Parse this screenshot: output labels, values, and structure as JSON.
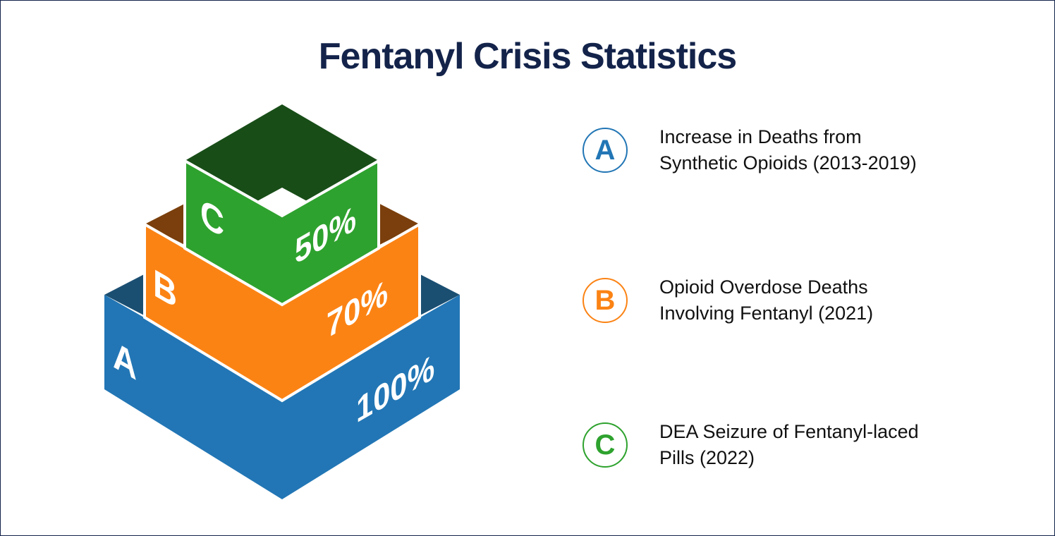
{
  "title": "Fentanyl Crisis Statistics",
  "colors": {
    "title": "#13234a",
    "A": "#2276b5",
    "B": "#fb8314",
    "C": "#2ea22e",
    "A_dark": "#1b4f72",
    "B_dark": "#7a3f0c",
    "C_dark": "#184d17"
  },
  "levels": [
    {
      "letter": "A",
      "value": "100%",
      "line1": "Increase in Deaths from",
      "line2": "Synthetic Opioids (2013-2019)"
    },
    {
      "letter": "B",
      "value": "70%",
      "line1": "Opioid Overdose Deaths",
      "line2": "Involving Fentanyl (2021)"
    },
    {
      "letter": "C",
      "value": "50%",
      "line1": "DEA Seizure of Fentanyl-laced",
      "line2": "Pills (2022)"
    }
  ]
}
